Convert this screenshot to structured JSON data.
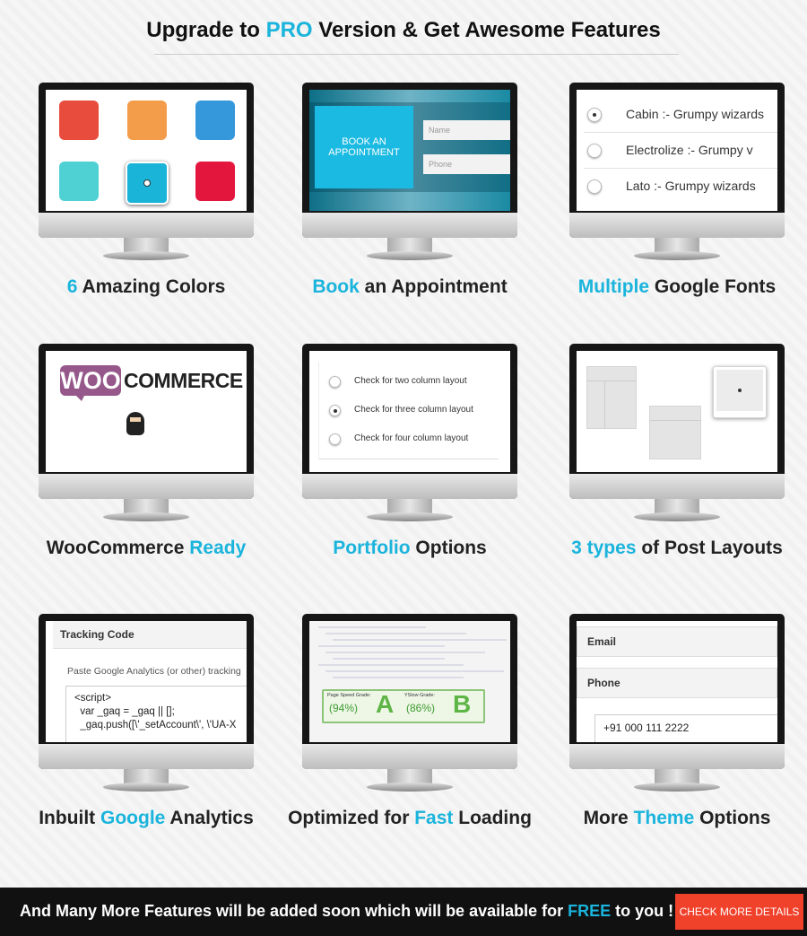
{
  "header": {
    "title": [
      {
        "text": "Upgrade to "
      },
      {
        "text": "PRO",
        "highlight": true
      },
      {
        "text": " Version & Get Awesome Features"
      }
    ]
  },
  "features": [
    {
      "caption": [
        {
          "text": "6",
          "highlight": true
        },
        {
          "text": " Amazing Colors"
        }
      ],
      "screen": {
        "kind": "colors",
        "swatches": [
          "#e74c3c",
          "#f39c4a",
          "#3498db",
          "#4fd1d4",
          "#1ab4d8",
          "#e3173e"
        ],
        "selected": 4
      }
    },
    {
      "caption": [
        {
          "text": "Book",
          "highlight": true
        },
        {
          "text": " an Appointment"
        }
      ],
      "screen": {
        "kind": "appointment",
        "button": "BOOK AN APPOINTMENT",
        "fields": [
          "Name",
          "Phone"
        ]
      }
    },
    {
      "caption": [
        {
          "text": "Multiple",
          "highlight": true
        },
        {
          "text": " Google Fonts"
        }
      ],
      "screen": {
        "kind": "fonts",
        "options": [
          "Cabin :- Grumpy wizards",
          "Electrolize :- Grumpy v",
          "Lato :- Grumpy wizards"
        ]
      }
    },
    {
      "caption": [
        {
          "text": "WooCommerce "
        },
        {
          "text": "Ready",
          "highlight": true
        }
      ],
      "screen": {
        "kind": "woo",
        "logo_a": "WOO",
        "logo_b": "COMMERCE"
      }
    },
    {
      "caption": [
        {
          "text": "Portfolio",
          "highlight": true
        },
        {
          "text": " Options"
        }
      ],
      "screen": {
        "kind": "portfolio",
        "options": [
          "Check for two column layout",
          "Check for three column layout",
          "Check for four column layout"
        ],
        "selected": 1
      }
    },
    {
      "caption": [
        {
          "text": "3 types",
          "highlight": true
        },
        {
          "text": " of Post Layouts"
        }
      ],
      "screen": {
        "kind": "layouts"
      }
    },
    {
      "caption": [
        {
          "text": "Inbuilt "
        },
        {
          "text": "Google",
          "highlight": true
        },
        {
          "text": " Analytics"
        }
      ],
      "screen": {
        "kind": "analytics",
        "heading": "Tracking Code",
        "hint": "Paste Google Analytics (or other) tracking",
        "code": [
          "<script>",
          "  var _gaq = _gaq || [];",
          "  _gaq.push([\\'_setAccount\\', \\'UA-X"
        ]
      }
    },
    {
      "caption": [
        {
          "text": "Optimized for "
        },
        {
          "text": "Fast",
          "highlight": true
        },
        {
          "text": " Loading"
        }
      ],
      "screen": {
        "kind": "speed",
        "grades": [
          {
            "label": "Page Speed Grade:",
            "score": "(94%)",
            "grade": "A"
          },
          {
            "label": "YSlow Grade:",
            "score": "(86%)",
            "grade": "B"
          }
        ]
      }
    },
    {
      "caption": [
        {
          "text": "More "
        },
        {
          "text": "Theme",
          "highlight": true
        },
        {
          "text": " Options"
        }
      ],
      "screen": {
        "kind": "theme",
        "fields": [
          "Email",
          "Phone"
        ],
        "value": "+91 000 111 2222"
      }
    }
  ],
  "footer": {
    "text": [
      {
        "text": "And Many More Features will be added soon which will be available for "
      },
      {
        "text": "FREE",
        "highlight": true
      },
      {
        "text": " to you !"
      }
    ],
    "button": "CHECK MORE DETAILS"
  }
}
